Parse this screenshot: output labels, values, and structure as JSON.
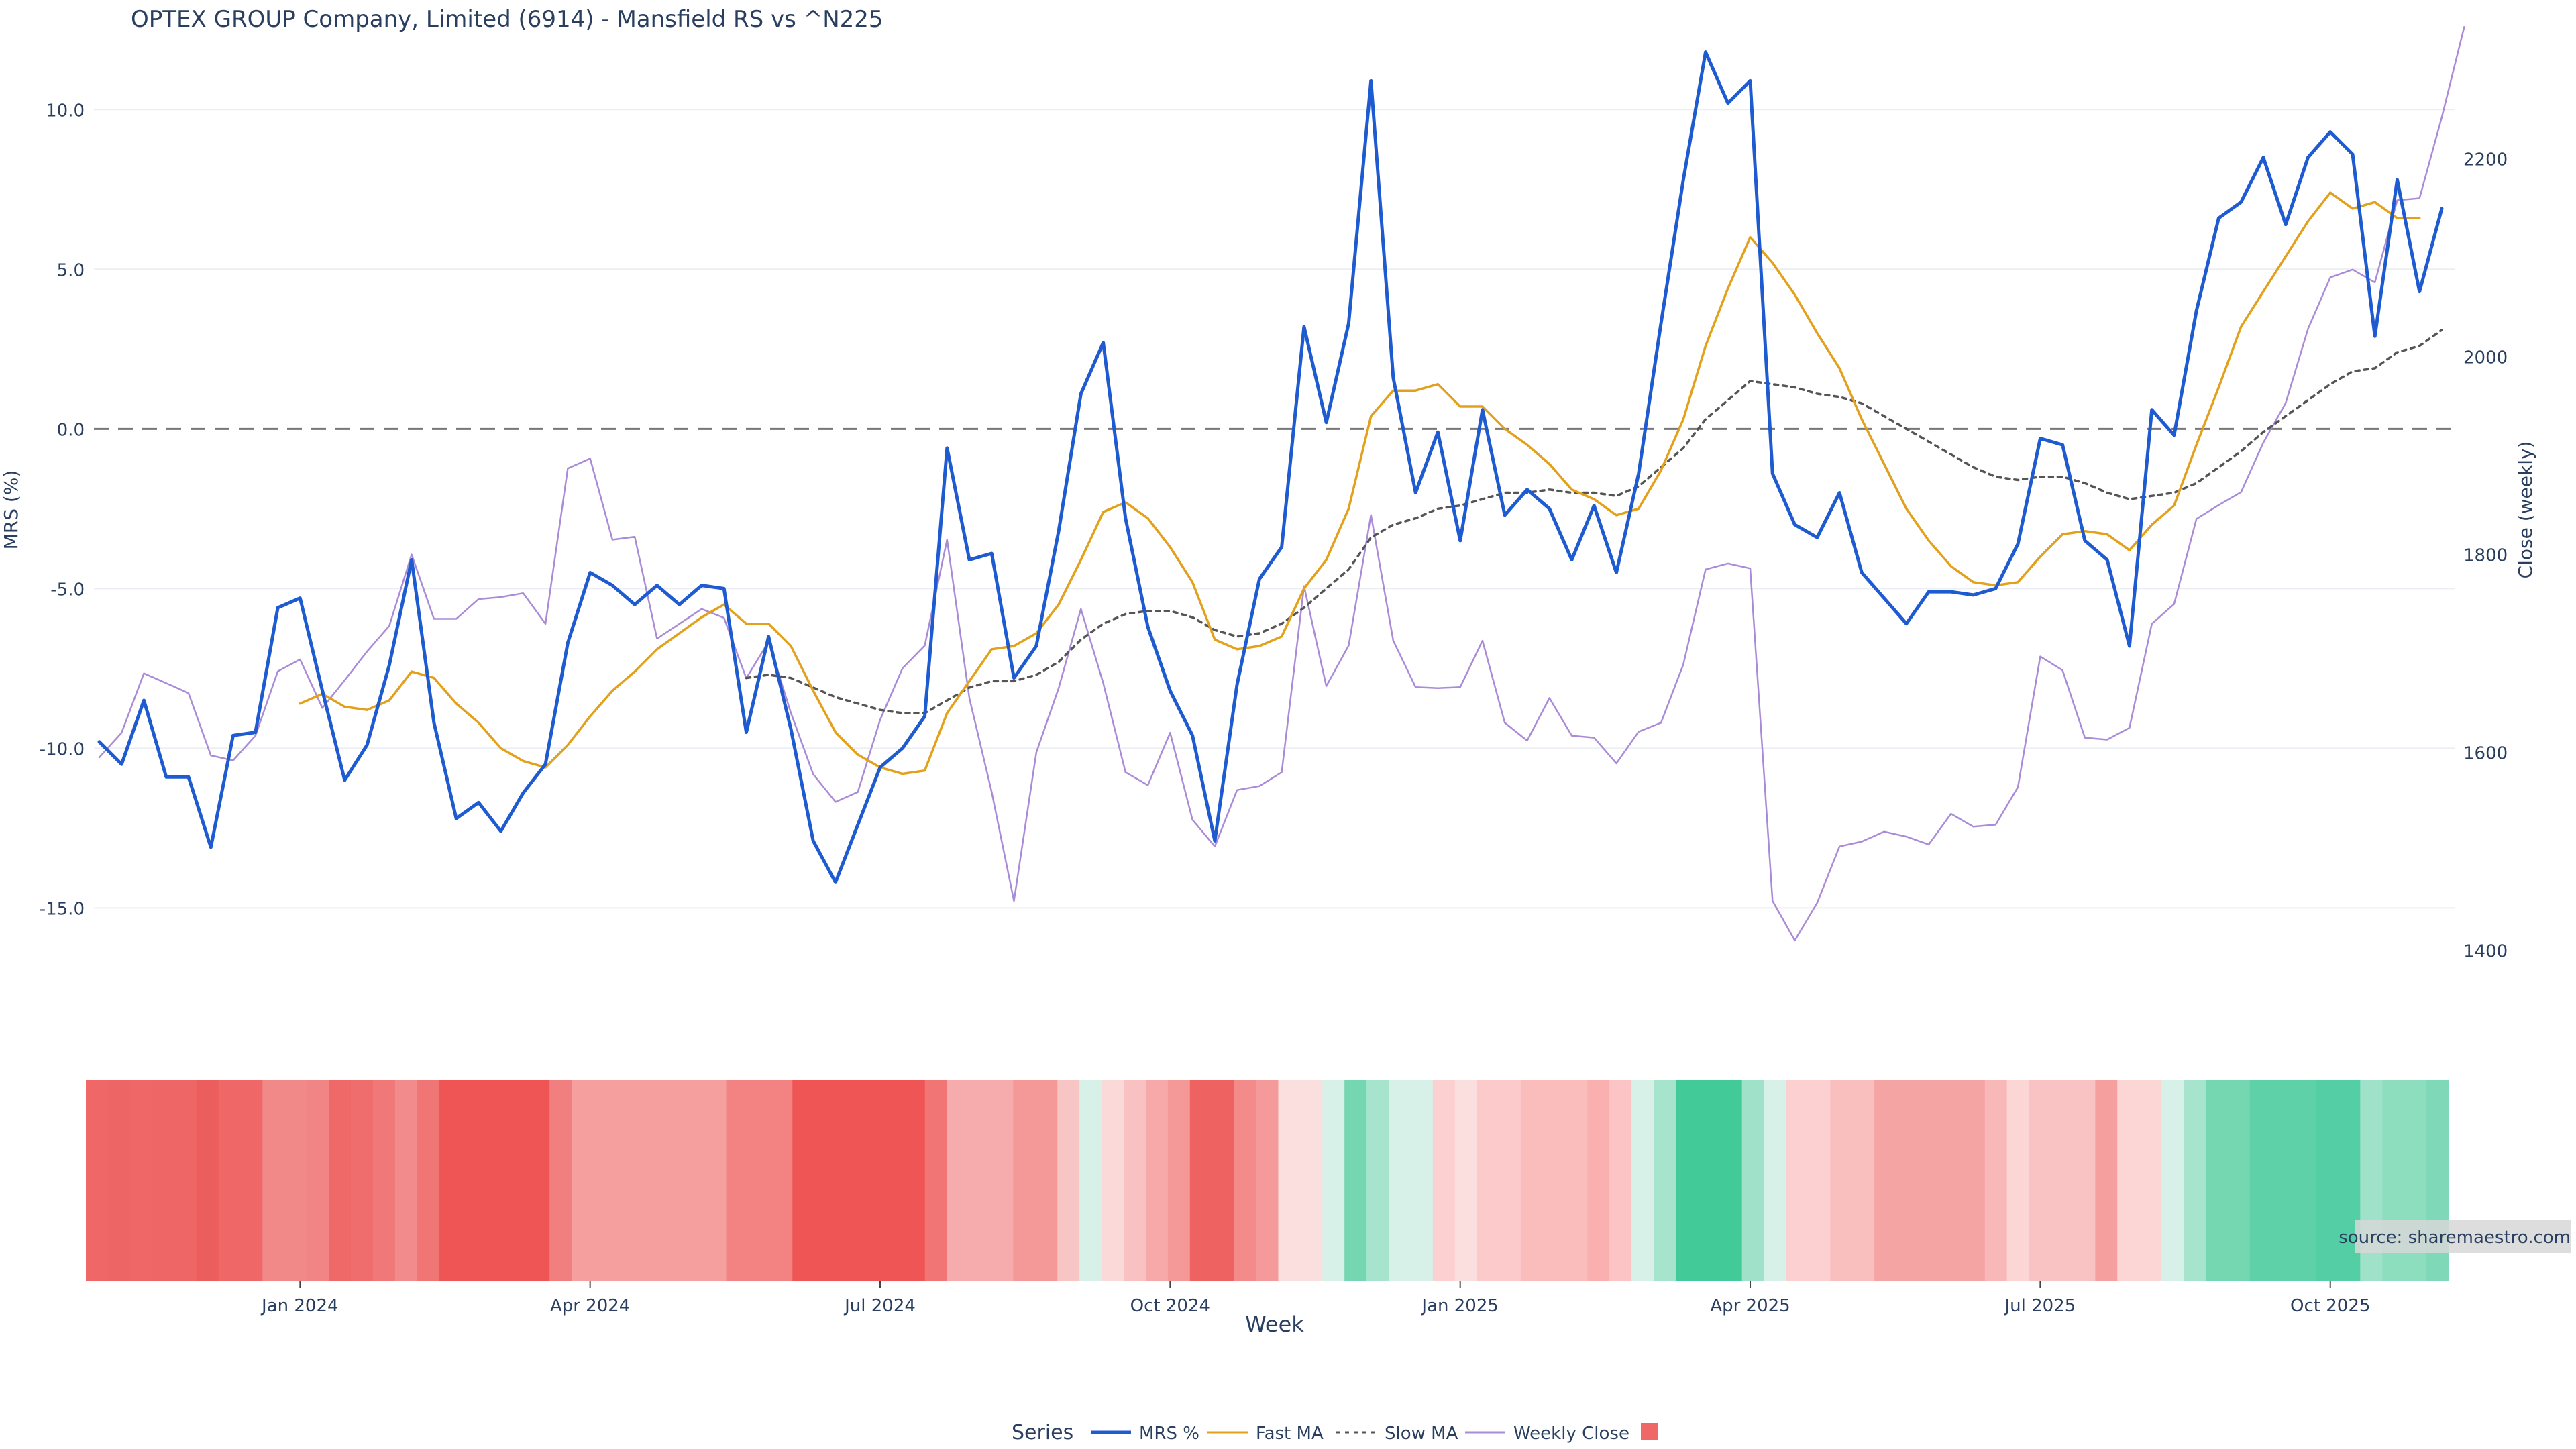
{
  "chart_data": {
    "type": "line",
    "title": "OPTEX GROUP Company, Limited (6914) - Mansfield RS vs ^N225",
    "xlabel": "Week",
    "ylabel_left": "MRS (%)",
    "ylabel_right": "Close (weekly)",
    "source": "source: sharemaestro.com",
    "legend_title": "Series",
    "legend_position": "bottom",
    "grid": true,
    "x_tick_labels": [
      "Jan 2024",
      "Apr 2024",
      "Jul 2024",
      "Oct 2024",
      "Jan 2025",
      "Apr 2025",
      "Jul 2025",
      "Oct 2025"
    ],
    "y_left_ticks": [
      "10.0",
      "5.0",
      "0.0",
      "-5.0",
      "-10.0",
      "-15.0"
    ],
    "y_right_ticks": [
      "2200",
      "2000",
      "1800",
      "1600",
      "1400"
    ],
    "ylim_left": [
      -18.5,
      12.8
    ],
    "ylim_right": [
      1330,
      2340
    ],
    "x_start": "2023-10-30",
    "x_step_days": 7,
    "series": [
      {
        "name": "MRS %",
        "color": "#1f5bd0",
        "style": "solid",
        "axis": "left",
        "values": [
          -9.8,
          -10.5,
          -8.5,
          -10.9,
          -10.9,
          -13.1,
          -9.6,
          -9.5,
          -5.6,
          -5.3,
          -8.2,
          -11.0,
          -9.9,
          -7.4,
          -4.1,
          -9.2,
          -12.2,
          -11.7,
          -12.6,
          -11.4,
          -10.5,
          -6.7,
          -4.5,
          -4.9,
          -5.5,
          -4.9,
          -5.5,
          -4.9,
          -5.0,
          -9.5,
          -6.5,
          -9.4,
          -12.9,
          -14.2,
          -12.4,
          -10.6,
          -10.0,
          -9.0,
          -0.6,
          -4.1,
          -3.9,
          -7.8,
          -6.8,
          -3.2,
          1.1,
          2.7,
          -2.8,
          -6.2,
          -8.2,
          -9.6,
          -12.9,
          -8.0,
          -4.7,
          -3.7,
          3.2,
          0.2,
          3.3,
          10.9,
          1.6,
          -2.0,
          -0.1,
          -3.5,
          0.6,
          -2.7,
          -1.9,
          -2.5,
          -4.1,
          -2.4,
          -4.5,
          -1.4,
          3.3,
          7.8,
          11.8,
          10.2,
          10.9,
          -1.4,
          -3.0,
          -3.4,
          -2.0,
          -4.5,
          -5.3,
          -6.1,
          -5.1,
          -5.1,
          -5.2,
          -5.0,
          -3.6,
          -0.3,
          -0.5,
          -3.5,
          -4.1,
          -6.8,
          0.6,
          -0.2,
          3.7,
          6.6,
          7.1,
          8.5,
          6.4,
          8.5,
          9.3,
          8.6,
          2.9,
          7.8,
          4.3,
          6.9
        ]
      },
      {
        "name": "Fast MA",
        "color": "#e3a01b",
        "style": "solid",
        "axis": "left",
        "values": [
          null,
          null,
          null,
          null,
          null,
          null,
          null,
          null,
          null,
          -8.6,
          -8.3,
          -8.7,
          -8.8,
          -8.5,
          -7.6,
          -7.8,
          -8.6,
          -9.2,
          -10.0,
          -10.4,
          -10.6,
          -9.9,
          -9.0,
          -8.2,
          -7.6,
          -6.9,
          -6.4,
          -5.9,
          -5.5,
          -6.1,
          -6.1,
          -6.8,
          -8.2,
          -9.5,
          -10.2,
          -10.6,
          -10.8,
          -10.7,
          -8.9,
          -7.9,
          -6.9,
          -6.8,
          -6.4,
          -5.5,
          -4.1,
          -2.6,
          -2.3,
          -2.8,
          -3.7,
          -4.8,
          -6.6,
          -6.9,
          -6.8,
          -6.5,
          -5.0,
          -4.1,
          -2.5,
          0.4,
          1.2,
          1.2,
          1.4,
          0.7,
          0.7,
          0.0,
          -0.5,
          -1.1,
          -1.9,
          -2.2,
          -2.7,
          -2.5,
          -1.3,
          0.3,
          2.6,
          4.4,
          6.0,
          5.2,
          4.2,
          3.0,
          1.9,
          0.3,
          -1.1,
          -2.5,
          -3.5,
          -4.3,
          -4.8,
          -4.9,
          -4.8,
          -4.0,
          -3.3,
          -3.2,
          -3.3,
          -3.8,
          -3.0,
          -2.4,
          -0.5,
          1.3,
          3.2,
          4.3,
          5.4,
          6.5,
          7.4,
          6.9,
          7.1,
          6.6,
          6.6
        ]
      },
      {
        "name": "Slow MA",
        "color": "#555555",
        "style": "dotted",
        "axis": "left",
        "values": [
          null,
          null,
          null,
          null,
          null,
          null,
          null,
          null,
          null,
          null,
          null,
          null,
          null,
          null,
          null,
          null,
          null,
          null,
          null,
          null,
          null,
          null,
          null,
          null,
          null,
          null,
          null,
          null,
          null,
          -7.8,
          -7.7,
          -7.8,
          -8.1,
          -8.4,
          -8.6,
          -8.8,
          -8.9,
          -8.9,
          -8.5,
          -8.1,
          -7.9,
          -7.9,
          -7.7,
          -7.3,
          -6.6,
          -6.1,
          -5.8,
          -5.7,
          -5.7,
          -5.9,
          -6.3,
          -6.5,
          -6.4,
          -6.1,
          -5.6,
          -5.0,
          -4.4,
          -3.4,
          -3.0,
          -2.8,
          -2.5,
          -2.4,
          -2.2,
          -2.0,
          -2.0,
          -1.9,
          -2.0,
          -2.0,
          -2.1,
          -1.8,
          -1.2,
          -0.6,
          0.3,
          0.9,
          1.5,
          1.4,
          1.3,
          1.1,
          1.0,
          0.8,
          0.4,
          0.0,
          -0.4,
          -0.8,
          -1.2,
          -1.5,
          -1.6,
          -1.5,
          -1.5,
          -1.7,
          -2.0,
          -2.2,
          -2.1,
          -2.0,
          -1.7,
          -1.2,
          -0.7,
          -0.1,
          0.4,
          0.9,
          1.4,
          1.8,
          1.9,
          2.4,
          2.6,
          3.1
        ]
      },
      {
        "name": "Weekly Close",
        "color": "#a98bd8",
        "style": "solid",
        "axis": "right",
        "values": [
          1595,
          1620,
          1680,
          1670,
          1660,
          1597,
          1592,
          1617,
          1682,
          1694,
          1645,
          1673,
          1702,
          1728,
          1800,
          1735,
          1735,
          1755,
          1757,
          1761,
          1730,
          1887,
          1897,
          1815,
          1818,
          1715,
          1730,
          1745,
          1736,
          1675,
          1712,
          1640,
          1578,
          1550,
          1560,
          1633,
          1685,
          1708,
          1815,
          1655,
          1560,
          1450,
          1600,
          1665,
          1745,
          1670,
          1580,
          1567,
          1620,
          1532,
          1505,
          1562,
          1566,
          1580,
          1768,
          1667,
          1708,
          1840,
          1713,
          1666,
          1665,
          1666,
          1713,
          1630,
          1612,
          1655,
          1617,
          1615,
          1589,
          1621,
          1630,
          1689,
          1785,
          1791,
          1786,
          1450,
          1410,
          1448,
          1505,
          1510,
          1520,
          1515,
          1507,
          1538,
          1525,
          1527,
          1565,
          1697,
          1683,
          1615,
          1613,
          1625,
          1730,
          1750,
          1836,
          1850,
          1863,
          1913,
          1953,
          2028,
          2080,
          2088,
          2075,
          2158,
          2160,
          2242,
          2333
        ]
      }
    ],
    "heatmap_strip": {
      "colors": [
        "#ef6767",
        "#ed6565",
        "#ef6767",
        "#ee6666",
        "#ee6666",
        "#ec5d5d",
        "#ef6767",
        "#ef6767",
        "#f28989",
        "#f28989",
        "#f18585",
        "#ef6969",
        "#ef6d6d",
        "#f17878",
        "#f28c8c",
        "#f07575",
        "#f05555",
        "#f05555",
        "#f05555",
        "#f05555",
        "#f05555",
        "#f27f7f",
        "#f59f9f",
        "#f59f9f",
        "#f59f9f",
        "#f59f9f",
        "#f59f9f",
        "#f59f9f",
        "#f59f9f",
        "#f38282",
        "#f38282",
        "#f38282",
        "#f05555",
        "#f05555",
        "#f05555",
        "#f05555",
        "#f05555",
        "#f05555",
        "#f17575",
        "#f6acac",
        "#f6acac",
        "#f6acac",
        "#f59898",
        "#f59898",
        "#f8c5c5",
        "#d7f1e8",
        "#fbd9d9",
        "#f9c1c1",
        "#f7a8a8",
        "#f59898",
        "#ef6262",
        "#ef6262",
        "#f48b8b",
        "#f59a9a",
        "#fbdede",
        "#fbdede",
        "#d7f1e8",
        "#74d7b2",
        "#a6e4cd",
        "#d7f1e8",
        "#d7f1e8",
        "#fcd0d0",
        "#fbdede",
        "#fccaca",
        "#fccaca",
        "#fbbcbc",
        "#fbbcbc",
        "#fbbcbc",
        "#fbb0b0",
        "#fcc4c4",
        "#d7f1e8",
        "#a6e4cd",
        "#43ca99",
        "#43ca99",
        "#43ca99",
        "#9fe2c9",
        "#d7f1e8",
        "#fcd0d0",
        "#fcd0d0",
        "#f9bebe",
        "#f9bebe",
        "#f5a4a4",
        "#f5a4a4",
        "#f5a4a4",
        "#f5a4a4",
        "#f5a4a4",
        "#f8b8b8",
        "#fcd5d5",
        "#f9c3c3",
        "#f9c3c3",
        "#f9c3c3",
        "#f59f9f",
        "#fcd5d5",
        "#fcd5d5",
        "#d7f1e8",
        "#a6e4cd",
        "#74d7b2",
        "#74d7b2",
        "#5fd1a8",
        "#5fd1a8",
        "#5fd1a8",
        "#54cea4",
        "#54cea4",
        "#a0e2c9",
        "#8dddbf",
        "#8dddbf",
        "#7fd9b9"
      ]
    }
  }
}
